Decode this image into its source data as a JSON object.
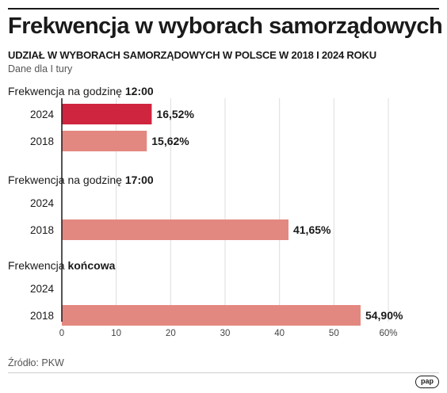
{
  "header": {
    "title": "Frekwencja w wyborach samorządowych",
    "subtitle": "UDZIAŁ W WYBORACH SAMORZĄDOWYCH W POLSCE W 2018 I 2024 ROKU",
    "note": "Dane dla I tury"
  },
  "footer": {
    "source": "Źródło: PKW",
    "logo": "pap"
  },
  "colors": {
    "highlight": "#d0253f",
    "bar": "#e38880",
    "grid": "#dcdcdc",
    "axis": "#1a1a1a"
  },
  "chart_data": {
    "type": "bar",
    "orientation": "horizontal",
    "xlim": [
      0,
      60
    ],
    "xticks": [
      0,
      10,
      20,
      30,
      40,
      50,
      60
    ],
    "xtick_labels": [
      "0",
      "10",
      "20",
      "30",
      "40",
      "50",
      "60%"
    ],
    "grid": "vertical",
    "groups": [
      {
        "title_prefix": "Frekwencja na godzinę ",
        "title_bold": "12:00",
        "bars": [
          {
            "year": "2024",
            "value": 16.52,
            "label": "16,52%",
            "highlight": true
          },
          {
            "year": "2018",
            "value": 15.62,
            "label": "15,62%",
            "highlight": false
          }
        ]
      },
      {
        "title_prefix": "Frekwencja na godzinę ",
        "title_bold": "17:00",
        "bars": [
          {
            "year": "2024",
            "value": null,
            "label": "",
            "highlight": false
          },
          {
            "year": "2018",
            "value": 41.65,
            "label": "41,65%",
            "highlight": false
          }
        ]
      },
      {
        "title_prefix": "Frekwencja ",
        "title_bold": "końcowa",
        "bars": [
          {
            "year": "2024",
            "value": null,
            "label": "",
            "highlight": false
          },
          {
            "year": "2018",
            "value": 54.9,
            "label": "54,90%",
            "highlight": false
          }
        ]
      }
    ]
  }
}
